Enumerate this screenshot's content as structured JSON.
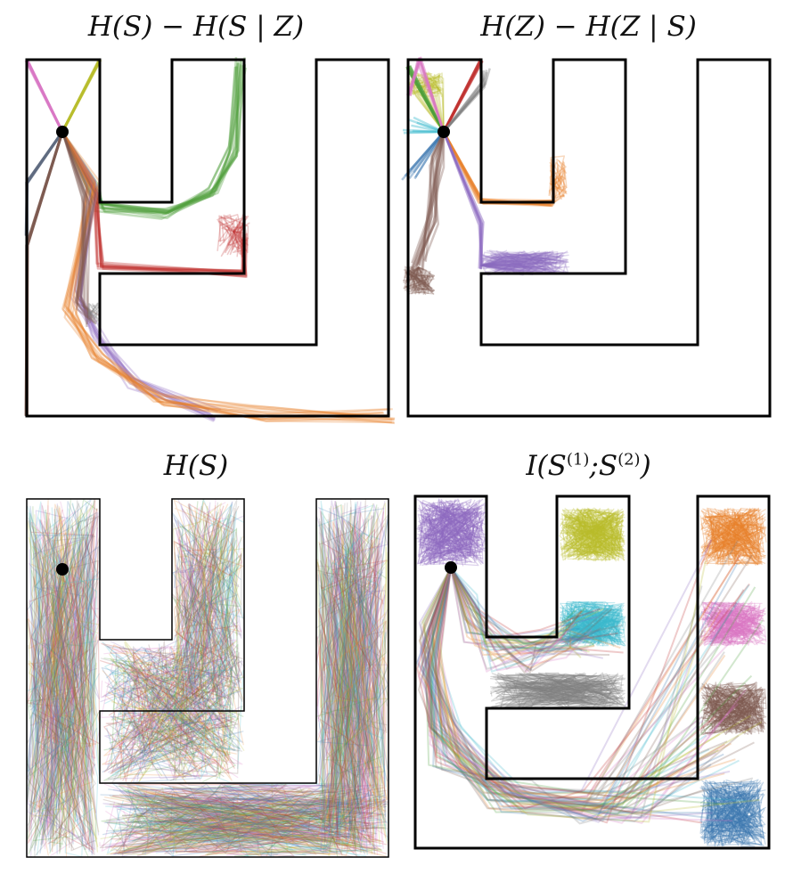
{
  "panels": [
    {
      "id": "p1",
      "title_parts": [
        "H(S) − H(S | Z)"
      ],
      "description": "skill trajectories"
    },
    {
      "id": "p2",
      "title_parts": [
        "H(Z) − H(Z | S)"
      ]
    },
    {
      "id": "p3",
      "title_parts": [
        "H(S)"
      ]
    },
    {
      "id": "p4",
      "title_parts": [
        "I(S",
        "(1)",
        ";S",
        "(2)",
        ")"
      ]
    }
  ],
  "colors": {
    "blue": "#3a76b0",
    "orange": "#e8822c",
    "green": "#4d9e3a",
    "red": "#c0302e",
    "purple": "#8d6bc1",
    "brown": "#7d5a50",
    "pink": "#d978c4",
    "gray": "#808080",
    "olive": "#b8bc2c",
    "cyan": "#3ab9cc",
    "slate": "#5f6b80"
  }
}
